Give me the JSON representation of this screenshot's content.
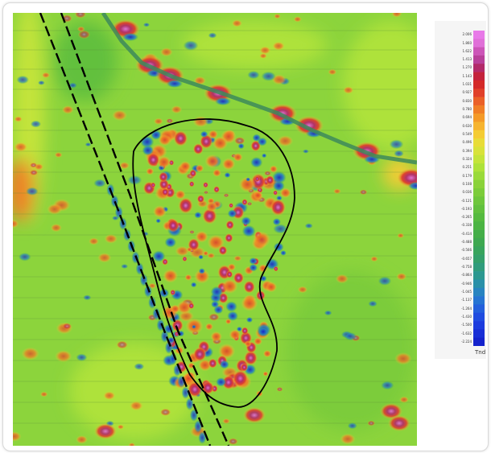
{
  "legend": {
    "unit": "Tnd",
    "ticks": [
      "2.006",
      "1.860",
      "1.622",
      "1.413",
      "1.270",
      "1.143",
      "1.031",
      "0.927",
      "0.830",
      "0.780",
      "0.694",
      "0.630",
      "0.549",
      "0.496",
      "0.394",
      "0.324",
      "0.251",
      "0.179",
      "0.108",
      "0.036",
      "-0.121",
      "-0.193",
      "-0.265",
      "-0.338",
      "-0.414",
      "-0.488",
      "-0.566",
      "-0.657",
      "-0.758",
      "-0.864",
      "-0.946",
      "-1.045",
      "-1.137",
      "-1.264",
      "-1.430",
      "-1.500",
      "-1.632",
      "-2.224"
    ],
    "colors": [
      "#e87ae8",
      "#e070d8",
      "#cc55b8",
      "#b8409a",
      "#b22a6a",
      "#c4223c",
      "#d42a28",
      "#e0402a",
      "#ea6028",
      "#f07e26",
      "#f49a28",
      "#f6b430",
      "#f4cc34",
      "#e8dc38",
      "#d8e23a",
      "#c4e43a",
      "#aee23a",
      "#9ada3a",
      "#8ad23a",
      "#7ccc3a",
      "#6ec63c",
      "#62c03e",
      "#56ba40",
      "#4cb443",
      "#44ae48",
      "#3ea850",
      "#38a45c",
      "#34a06a",
      "#309c7c",
      "#2c9890",
      "#2a90a8",
      "#2884c0",
      "#2674d2",
      "#2460dc",
      "#204ce0",
      "#1c3cde",
      "#182ed6",
      "#1422cc"
    ]
  }
}
